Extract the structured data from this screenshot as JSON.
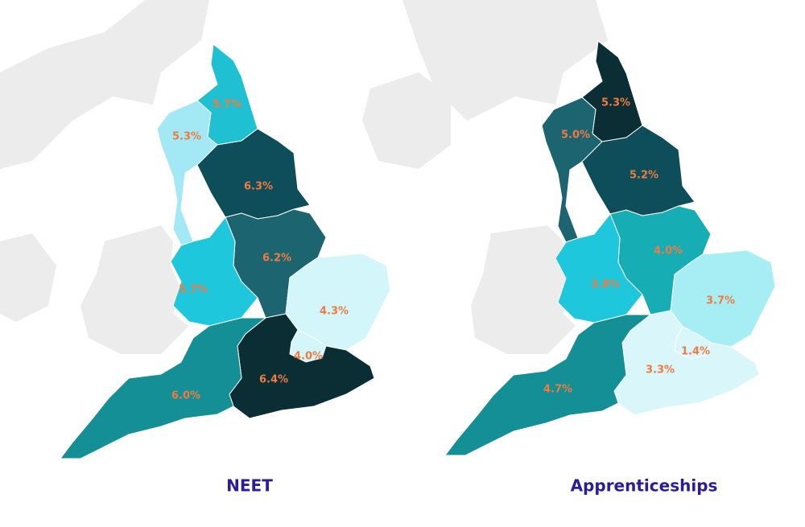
{
  "maps": [
    {
      "title": "NEET",
      "regions": [
        {
          "label": "5.7%",
          "color": "#1ec0d2"
        },
        {
          "label": "5.3%",
          "color": "#a3e9f5"
        },
        {
          "label": "6.3%",
          "color": "#0e4d5a"
        },
        {
          "label": "6.2%",
          "color": "#1c6570"
        },
        {
          "label": "5.7%",
          "color": "#1ec7dc"
        },
        {
          "label": "4.3%",
          "color": "#d3f6fb"
        },
        {
          "label": "4.0%",
          "color": "#d3f6fb"
        },
        {
          "label": "6.4%",
          "color": "#0b2e35"
        },
        {
          "label": "6.0%",
          "color": "#138f95"
        }
      ]
    },
    {
      "title": "Apprenticeships",
      "regions": [
        {
          "label": "5.3%",
          "color": "#0b2e35"
        },
        {
          "label": "5.0%",
          "color": "#1c6570"
        },
        {
          "label": "5.2%",
          "color": "#0e4d5a"
        },
        {
          "label": "4.0%",
          "color": "#17adb5"
        },
        {
          "label": "3.8%",
          "color": "#1ec7dc"
        },
        {
          "label": "3.7%",
          "color": "#a6eef3"
        },
        {
          "label": "1.4%",
          "color": "#d9f7fb"
        },
        {
          "label": "3.3%",
          "color": "#d9f7fb"
        },
        {
          "label": "4.7%",
          "color": "#138f95"
        }
      ]
    }
  ]
}
